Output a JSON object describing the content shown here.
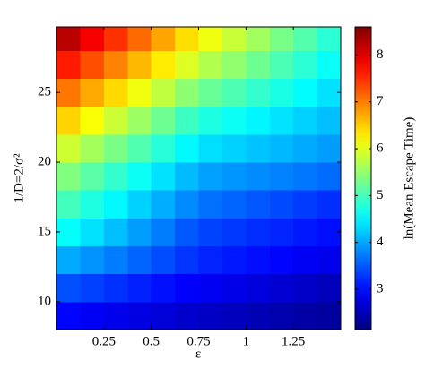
{
  "chart_data": {
    "type": "heatmap",
    "x_label": "ε",
    "y_label": "1/D=2/σ²",
    "colorbar_label": "ln(Mean Escape Time)",
    "colormap": "jet",
    "xlim": [
      0,
      1.5
    ],
    "ylim": [
      8,
      29.7
    ],
    "clim": [
      2.14,
      8.6
    ],
    "xticks": [
      0.25,
      0.5,
      0.75,
      1,
      1.25
    ],
    "yticks": [
      10,
      15,
      20,
      25
    ],
    "cticks": [
      3,
      4,
      5,
      6,
      7,
      8
    ],
    "x": [
      0.0625,
      0.1875,
      0.3125,
      0.4375,
      0.5625,
      0.6875,
      0.8125,
      0.9375,
      1.0625,
      1.1875,
      1.3125,
      1.4375
    ],
    "y": [
      9,
      11,
      13,
      15,
      17,
      19,
      21,
      23,
      25,
      27,
      29
    ],
    "z": [
      [
        2.97,
        2.9,
        2.83,
        2.77,
        2.7,
        2.63,
        2.58,
        2.53,
        2.48,
        2.43,
        2.38,
        2.33
      ],
      [
        3.45,
        3.35,
        3.25,
        3.15,
        3.05,
        2.95,
        2.87,
        2.8,
        2.73,
        2.67,
        2.6,
        2.53
      ],
      [
        4.03,
        3.88,
        3.73,
        3.58,
        3.43,
        3.28,
        3.17,
        3.1,
        3.03,
        2.97,
        2.9,
        2.83
      ],
      [
        4.59,
        4.38,
        4.16,
        3.94,
        3.73,
        3.51,
        3.37,
        3.3,
        3.23,
        3.17,
        3.1,
        3.03
      ],
      [
        4.98,
        4.75,
        4.52,
        4.28,
        4.05,
        3.82,
        3.66,
        3.58,
        3.49,
        3.41,
        3.33,
        3.24
      ],
      [
        5.38,
        5.13,
        4.88,
        4.63,
        4.38,
        4.13,
        3.97,
        3.9,
        3.83,
        3.77,
        3.7,
        3.63
      ],
      [
        5.87,
        5.6,
        5.33,
        5.07,
        4.8,
        4.53,
        4.36,
        4.28,
        4.19,
        4.11,
        4.03,
        3.94
      ],
      [
        6.45,
        6.15,
        5.85,
        5.55,
        5.25,
        4.95,
        4.74,
        4.63,
        4.51,
        4.39,
        4.28,
        4.16
      ],
      [
        7.04,
        6.73,
        6.41,
        6.09,
        5.78,
        5.46,
        5.22,
        5.05,
        4.88,
        4.72,
        4.55,
        4.38
      ],
      [
        7.63,
        7.3,
        6.97,
        6.63,
        6.3,
        5.97,
        5.69,
        5.48,
        5.26,
        5.04,
        4.83,
        4.61
      ],
      [
        8.22,
        7.85,
        7.48,
        7.12,
        6.75,
        6.38,
        6.08,
        5.83,
        5.58,
        5.32,
        5.08,
        4.83
      ]
    ]
  }
}
